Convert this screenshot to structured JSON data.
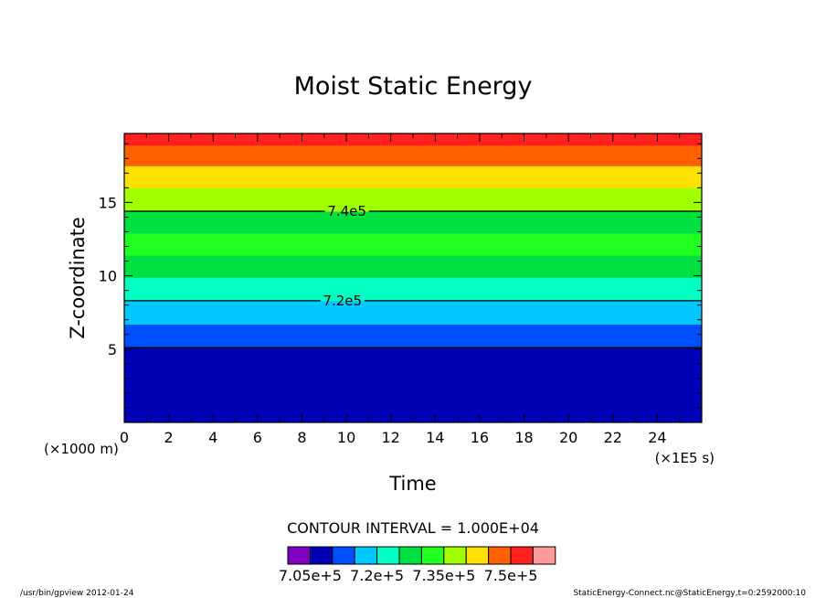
{
  "chart_data": {
    "type": "heatmap",
    "title": "Moist Static Energy",
    "xlabel": "Time",
    "ylabel": "Z-coordinate",
    "x_unit_label": "(×1E5 s)",
    "y_unit_label": "(×1000 m)",
    "xlim": [
      0,
      26
    ],
    "ylim": [
      0,
      19.7
    ],
    "xticks": [
      0,
      2,
      4,
      6,
      8,
      10,
      12,
      14,
      16,
      18,
      20,
      22,
      24
    ],
    "yticks": [
      5,
      10,
      15
    ],
    "bands": [
      {
        "z_bottom": 0.0,
        "z_top": 5.1,
        "color": "#0000b4"
      },
      {
        "z_bottom": 5.1,
        "z_top": 6.7,
        "color": "#0050ff"
      },
      {
        "z_bottom": 6.7,
        "z_top": 8.3,
        "color": "#00c8ff"
      },
      {
        "z_bottom": 8.3,
        "z_top": 9.9,
        "color": "#00ffc0"
      },
      {
        "z_bottom": 9.9,
        "z_top": 11.4,
        "color": "#00e040"
      },
      {
        "z_bottom": 11.4,
        "z_top": 12.9,
        "color": "#20ff20"
      },
      {
        "z_bottom": 12.9,
        "z_top": 14.4,
        "color": "#00e040"
      },
      {
        "z_bottom": 14.4,
        "z_top": 16.0,
        "color": "#a0ff00"
      },
      {
        "z_bottom": 16.0,
        "z_top": 17.5,
        "color": "#ffe000"
      },
      {
        "z_bottom": 17.5,
        "z_top": 18.9,
        "color": "#ff6000"
      },
      {
        "z_bottom": 18.9,
        "z_top": 19.7,
        "color": "#ff2020"
      }
    ],
    "contour_lines": [
      {
        "z": 5.1,
        "label": ""
      },
      {
        "z": 8.3,
        "label": "7.2e5",
        "label_x": 9.0
      },
      {
        "z": 14.4,
        "label": "7.4e5",
        "label_x": 9.2
      }
    ],
    "contour_interval_text": "CONTOUR INTERVAL = 1.000E+04",
    "colorbar": {
      "colors": [
        "#8000c0",
        "#0000b4",
        "#0050ff",
        "#00c8ff",
        "#00ffc0",
        "#00e040",
        "#20ff20",
        "#a0ff00",
        "#ffe000",
        "#ff6000",
        "#ff2020",
        "#ff9a9a"
      ],
      "labels": [
        {
          "text": "7.05e+5",
          "boundary": 1
        },
        {
          "text": "7.2e+5",
          "boundary": 4
        },
        {
          "text": "7.35e+5",
          "boundary": 7
        },
        {
          "text": "7.5e+5",
          "boundary": 10
        }
      ]
    }
  },
  "footer": {
    "left": "/usr/bin/gpview  2012-01-24",
    "right": "StaticEnergy-Connect.nc@StaticEnergy,t=0:2592000:10"
  }
}
